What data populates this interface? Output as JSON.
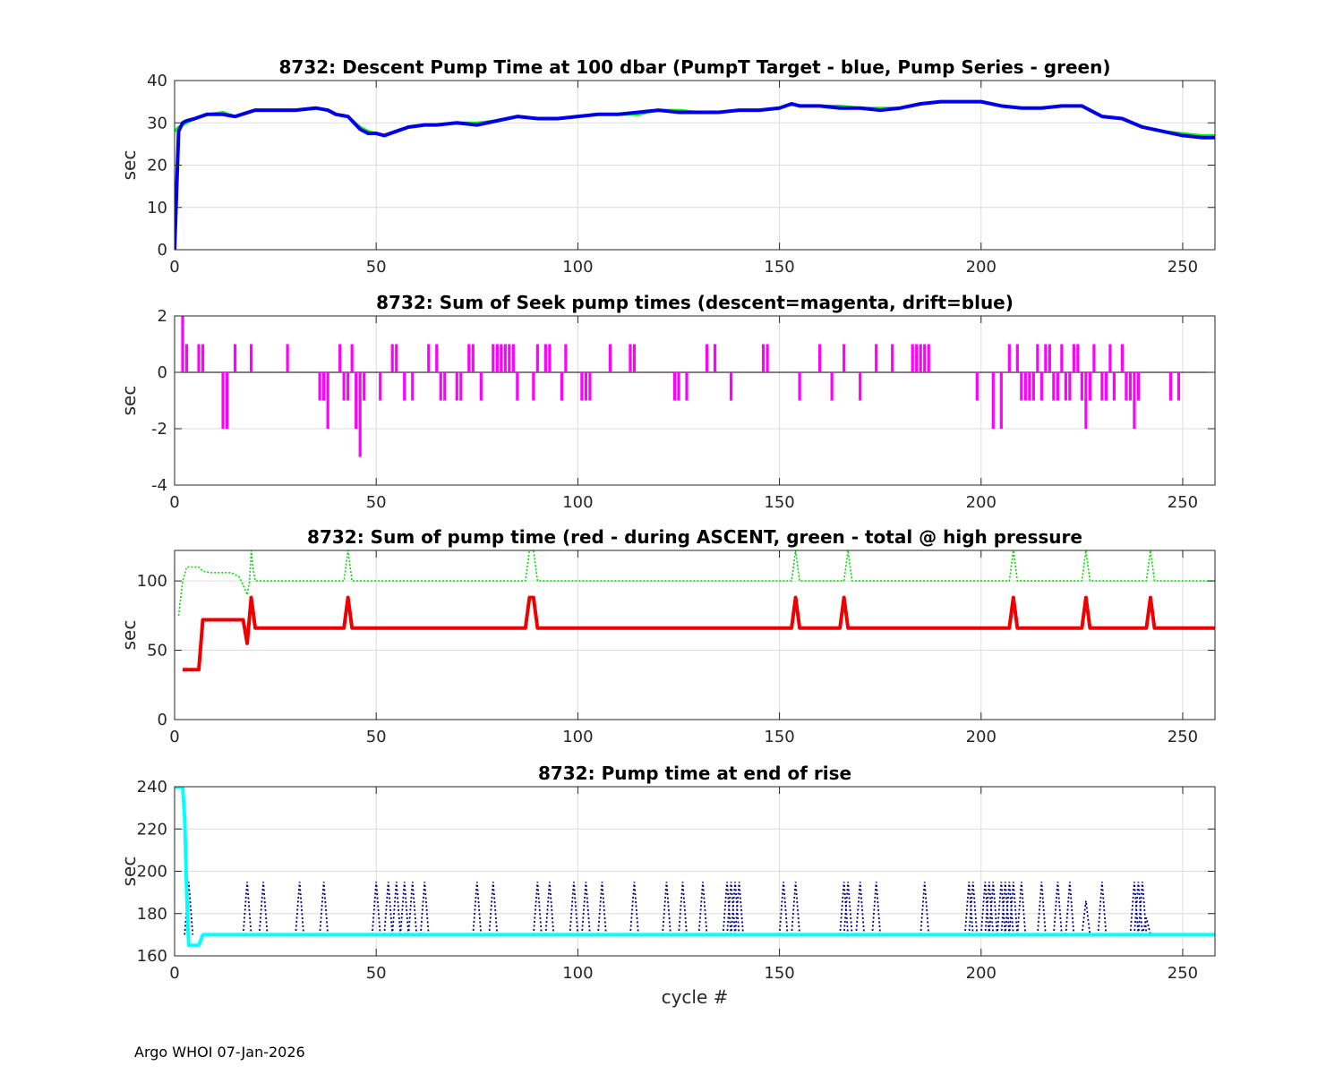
{
  "footer": "Argo WHOI 07-Jan-2026",
  "chart_data": [
    {
      "type": "line",
      "title": "8732: Descent Pump Time at 100 dbar (PumpT Target - blue, Pump Series - green)",
      "xlabel": "",
      "ylabel": "sec",
      "xlim": [
        0,
        258
      ],
      "ylim": [
        0,
        40
      ],
      "xticks": [
        0,
        50,
        100,
        150,
        200,
        250
      ],
      "yticks": [
        0,
        10,
        20,
        30,
        40
      ],
      "grid": true,
      "series": [
        {
          "name": "Pump Series",
          "color": "#00ff00",
          "width": 3,
          "style": "solid",
          "x": [
            0,
            1,
            3,
            5,
            8,
            12,
            15,
            20,
            25,
            30,
            35,
            38,
            40,
            43,
            46,
            48,
            50,
            52,
            55,
            58,
            62,
            65,
            70,
            75,
            80,
            85,
            90,
            95,
            100,
            105,
            110,
            115,
            120,
            125,
            130,
            135,
            140,
            145,
            150,
            153,
            155,
            160,
            165,
            170,
            175,
            180,
            185,
            190,
            195,
            200,
            205,
            210,
            215,
            220,
            225,
            230,
            235,
            240,
            245,
            250,
            255,
            258
          ],
          "y": [
            28,
            29,
            30,
            31,
            32,
            32.5,
            31.5,
            33,
            33,
            33,
            33.5,
            33,
            32,
            31.5,
            29,
            28,
            27.5,
            27,
            28,
            29,
            29.5,
            29.5,
            30,
            30,
            30.5,
            31.5,
            31,
            31,
            31.5,
            32,
            32,
            32,
            33,
            33,
            32.5,
            32.5,
            33,
            33,
            33.5,
            34.5,
            34,
            34,
            34,
            33.5,
            33.5,
            33.5,
            34.5,
            35,
            35,
            35,
            34,
            33.5,
            33.5,
            34,
            34,
            31.5,
            31,
            29,
            28,
            27.5,
            27,
            27
          ]
        },
        {
          "name": "PumpT Target",
          "color": "#0000e6",
          "width": 4,
          "style": "solid",
          "x": [
            0,
            1,
            2,
            3,
            5,
            8,
            12,
            15,
            20,
            25,
            30,
            35,
            38,
            40,
            43,
            46,
            48,
            50,
            52,
            55,
            58,
            62,
            65,
            70,
            75,
            80,
            85,
            90,
            95,
            100,
            105,
            110,
            115,
            120,
            125,
            130,
            135,
            140,
            145,
            150,
            153,
            155,
            160,
            165,
            170,
            175,
            180,
            185,
            190,
            195,
            200,
            205,
            210,
            215,
            220,
            225,
            230,
            235,
            240,
            245,
            250,
            255,
            258
          ],
          "y": [
            0,
            28,
            30,
            30.5,
            31,
            32,
            32,
            31.5,
            33,
            33,
            33,
            33.5,
            33,
            32,
            31.5,
            28.5,
            27.5,
            27.5,
            27,
            28,
            29,
            29.5,
            29.5,
            30,
            29.5,
            30.5,
            31.5,
            31,
            31,
            31.5,
            32,
            32,
            32.5,
            33,
            32.5,
            32.5,
            32.5,
            33,
            33,
            33.5,
            34.5,
            34,
            34,
            33.5,
            33.5,
            33,
            33.5,
            34.5,
            35,
            35,
            35,
            34,
            33.5,
            33.5,
            34,
            34,
            31.5,
            31,
            29,
            28,
            27,
            26.5,
            26.5
          ]
        }
      ]
    },
    {
      "type": "bar",
      "title": "8732: Sum of Seek pump times (descent=magenta, drift=blue)",
      "xlabel": "",
      "ylabel": "sec",
      "xlim": [
        0,
        258
      ],
      "ylim": [
        -4,
        2
      ],
      "xticks": [
        0,
        50,
        100,
        150,
        200,
        250
      ],
      "yticks": [
        -4,
        -2,
        0,
        2
      ],
      "grid": true,
      "series": [
        {
          "name": "descent",
          "color": "#ff00ff",
          "x": [
            2,
            3,
            6,
            7,
            12,
            13,
            15,
            19,
            28,
            36,
            37,
            38,
            41,
            42,
            43,
            44,
            45,
            46,
            47,
            51,
            54,
            55,
            57,
            59,
            63,
            65,
            66,
            67,
            70,
            71,
            73,
            74,
            76,
            79,
            80,
            81,
            82,
            83,
            84,
            85,
            89,
            90,
            92,
            93,
            96,
            97,
            101,
            102,
            103,
            108,
            113,
            114,
            124,
            125,
            127,
            132,
            134,
            138,
            146,
            147,
            155,
            160,
            163,
            166,
            170,
            174,
            178,
            183,
            184,
            185,
            186,
            187,
            199,
            203,
            205,
            207,
            209,
            210,
            211,
            212,
            213,
            214,
            215,
            216,
            217,
            218,
            219,
            220,
            221,
            222,
            223,
            224,
            225,
            226,
            227,
            228,
            230,
            231,
            232,
            233,
            235,
            236,
            237,
            238,
            239,
            247,
            249
          ],
          "values": [
            2,
            1,
            1,
            1,
            -2,
            -2,
            1,
            1,
            1,
            -1,
            -1,
            -2,
            1,
            -1,
            -1,
            1,
            -2,
            -3,
            -1,
            -1,
            1,
            1,
            -1,
            -1,
            1,
            1,
            -1,
            -1,
            -1,
            -1,
            1,
            1,
            -1,
            1,
            1,
            1,
            1,
            1,
            1,
            -1,
            -1,
            1,
            1,
            1,
            -1,
            1,
            -1,
            -1,
            -1,
            1,
            1,
            1,
            -1,
            -1,
            -1,
            1,
            1,
            -1,
            1,
            1,
            -1,
            1,
            -1,
            1,
            -1,
            1,
            1,
            1,
            1,
            1,
            1,
            1,
            -1,
            -2,
            -2,
            1,
            1,
            -1,
            -1,
            -1,
            -1,
            1,
            -1,
            1,
            1,
            -1,
            -1,
            1,
            -1,
            -1,
            1,
            1,
            -1,
            -2,
            -1,
            1,
            -1,
            -1,
            1,
            -1,
            1,
            -1,
            -1,
            -2,
            -1,
            -1,
            -1
          ]
        }
      ]
    },
    {
      "type": "line",
      "title": "8732: Sum of pump time (red - during ASCENT, green - total @ high pressure",
      "xlabel": "",
      "ylabel": "sec",
      "xlim": [
        0,
        258
      ],
      "ylim": [
        0,
        122
      ],
      "xticks": [
        0,
        50,
        100,
        150,
        200,
        250
      ],
      "yticks": [
        0,
        50,
        100
      ],
      "grid": true,
      "series": [
        {
          "name": "total @ high pressure",
          "color": "#00dd00",
          "width": 1.6,
          "style": "dotted",
          "x": [
            1,
            2,
            3,
            5,
            6,
            7,
            9,
            14,
            16,
            17,
            18,
            18.6,
            19,
            19.4,
            20,
            42,
            43,
            44,
            45,
            87,
            88,
            89,
            90,
            153,
            154,
            155,
            166,
            167,
            168,
            207,
            208,
            209,
            225,
            226,
            227,
            241,
            242,
            243,
            258
          ],
          "y": [
            75,
            100,
            110,
            110,
            110,
            107,
            106,
            106,
            103,
            97,
            90,
            100,
            122,
            110,
            100,
            100,
            122,
            100,
            100,
            100,
            122,
            122,
            100,
            100,
            122,
            100,
            100,
            122,
            100,
            100,
            122,
            100,
            100,
            122,
            100,
            100,
            122,
            100,
            100
          ]
        },
        {
          "name": "during ASCENT",
          "color": "#ee0000",
          "width": 4,
          "style": "solid",
          "x": [
            2,
            6,
            7,
            17,
            18,
            19,
            20,
            42,
            43,
            44,
            87,
            88,
            89,
            90,
            153,
            154,
            155,
            165,
            166,
            167,
            207,
            208,
            209,
            225,
            226,
            227,
            241,
            242,
            243,
            258
          ],
          "y": [
            36,
            36,
            72,
            72,
            55,
            88,
            66,
            66,
            88,
            66,
            66,
            88,
            88,
            66,
            66,
            88,
            66,
            66,
            88,
            66,
            66,
            88,
            66,
            66,
            88,
            66,
            66,
            88,
            66,
            66
          ]
        }
      ]
    },
    {
      "type": "line",
      "title": "8732: Pump time at end of rise",
      "xlabel": "cycle #",
      "ylabel": "sec",
      "xlim": [
        0,
        258
      ],
      "ylim": [
        160,
        240
      ],
      "xticks": [
        0,
        50,
        100,
        150,
        200,
        250
      ],
      "yticks": [
        160,
        180,
        200,
        220,
        240
      ],
      "grid": true,
      "spike_series": {
        "name": "pump time dotted",
        "color": "#00008b",
        "baseline": 170,
        "cycles": [
          3.5,
          18,
          22,
          31,
          37,
          50,
          53,
          55,
          57,
          59,
          62,
          75,
          79,
          90,
          93,
          99,
          102,
          106,
          114,
          122,
          126,
          131,
          137,
          138,
          139,
          140,
          151,
          154,
          166,
          167,
          170,
          174,
          186,
          197,
          198,
          201,
          202,
          203,
          205,
          206,
          207,
          208,
          210,
          215,
          219,
          222,
          226,
          230,
          238,
          239,
          240,
          241
        ],
        "peaks": [
          195,
          195,
          195,
          195,
          195,
          195,
          195,
          195,
          195,
          195,
          195,
          195,
          195,
          195,
          195,
          195,
          195,
          195,
          195,
          195,
          195,
          195,
          195,
          195,
          195,
          195,
          195,
          195,
          195,
          195,
          195,
          195,
          195,
          195,
          195,
          195,
          195,
          195,
          195,
          195,
          195,
          195,
          195,
          195,
          195,
          195,
          186,
          195,
          195,
          195,
          195,
          178
        ]
      },
      "series": [
        {
          "name": "pump time end of rise",
          "color": "#00ffff",
          "width": 4,
          "style": "solid",
          "x": [
            0,
            1,
            2,
            2.5,
            3,
            3.5,
            4,
            6,
            7,
            258
          ],
          "y": [
            240,
            240,
            240,
            225,
            190,
            165,
            165,
            165,
            170,
            170
          ]
        }
      ]
    }
  ]
}
